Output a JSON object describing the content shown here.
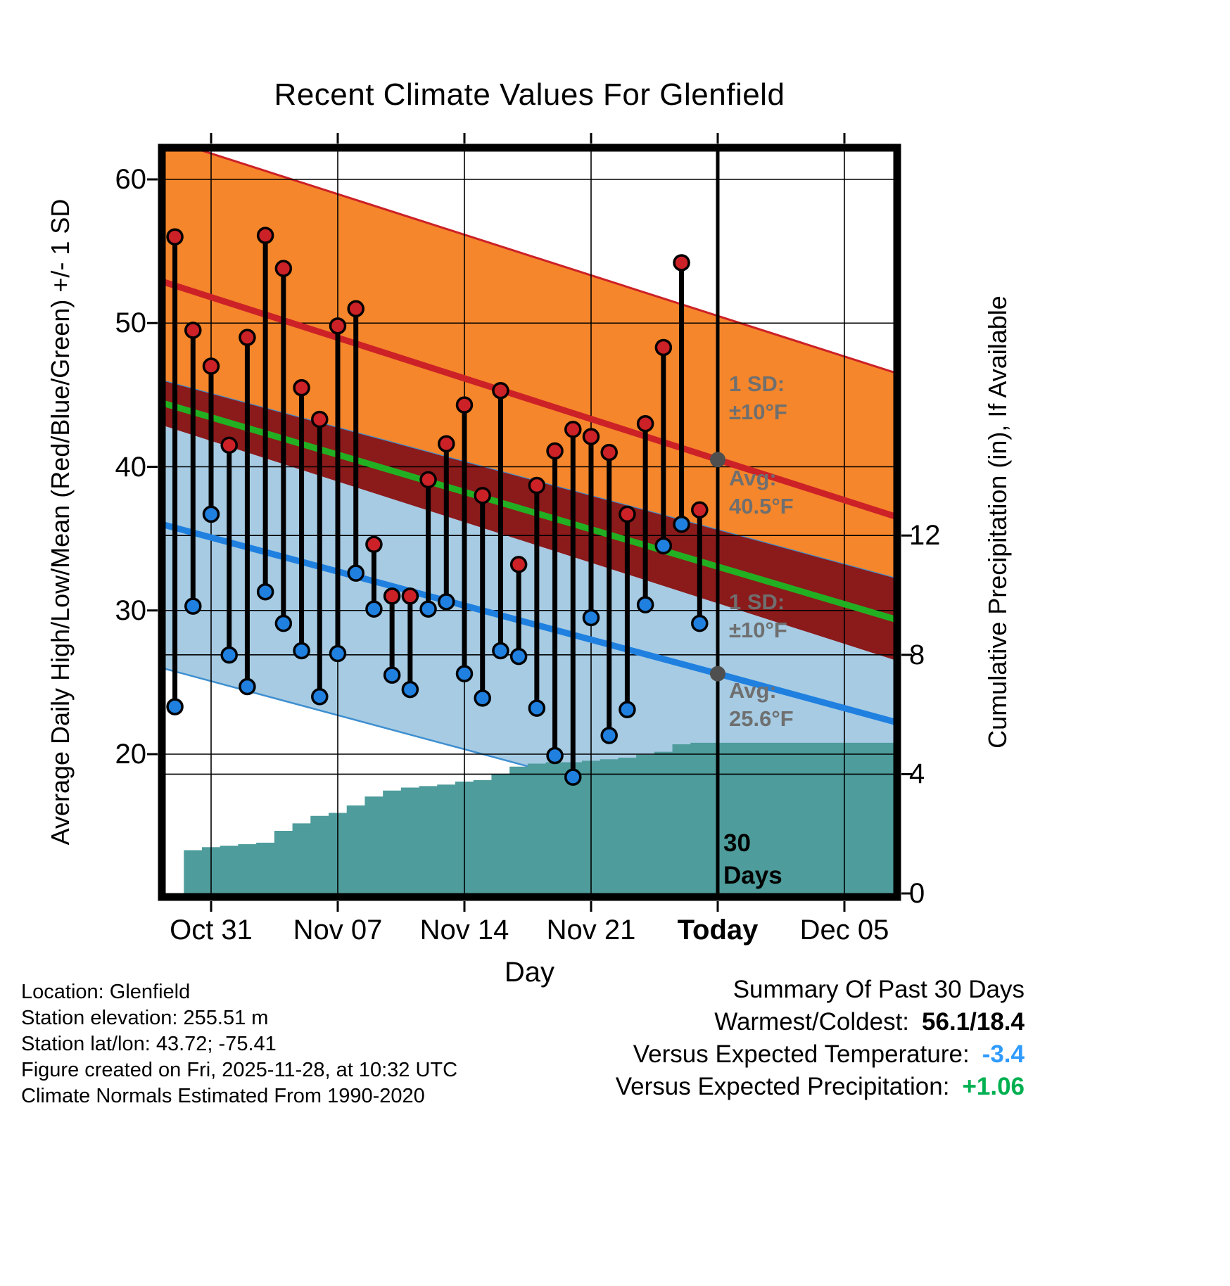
{
  "chart_data": {
    "type": "line",
    "title": "Recent Climate Values For Glenfield",
    "x_axis": {
      "label": "Day",
      "ticks": [
        {
          "label": "Oct 31",
          "day": 2,
          "bold": false
        },
        {
          "label": "Nov 07",
          "day": 9,
          "bold": false
        },
        {
          "label": "Nov 14",
          "day": 16,
          "bold": false
        },
        {
          "label": "Nov 21",
          "day": 23,
          "bold": false
        },
        {
          "label": "Today",
          "day": 30,
          "bold": true
        },
        {
          "label": "Dec 05",
          "day": 37,
          "bold": false
        }
      ]
    },
    "y_left": {
      "label": "Average Daily High/Low/Mean (Red/Blue/Green) +/- 1 SD",
      "ticks": [
        60,
        50,
        40,
        30,
        20
      ],
      "range": [
        10,
        62
      ]
    },
    "y_right": {
      "label": "Cumulative Precipitation (in), If Available",
      "ticks": [
        12,
        8,
        4,
        0
      ],
      "range": [
        0,
        25
      ]
    },
    "days": {
      "start_day_index": 0,
      "high": [
        56.0,
        49.5,
        47.0,
        41.5,
        49.0,
        56.1,
        53.8,
        45.5,
        43.3,
        49.8,
        51.0,
        34.6,
        31.0,
        31.0,
        39.1,
        41.6,
        44.3,
        38.0,
        45.3,
        33.2,
        38.7,
        41.1,
        42.6,
        42.1,
        41.0,
        36.7,
        43.0,
        48.3,
        54.2,
        37.0
      ],
      "low": [
        23.3,
        30.3,
        36.7,
        26.9,
        24.7,
        31.3,
        29.1,
        27.2,
        24.0,
        27.0,
        32.6,
        30.1,
        25.5,
        24.5,
        30.1,
        30.6,
        25.6,
        23.9,
        27.2,
        26.8,
        23.2,
        19.9,
        18.4,
        29.5,
        21.3,
        23.1,
        30.4,
        34.5,
        36.0,
        29.1
      ]
    },
    "normals": {
      "x_days": [
        -0.72,
        30,
        39.92
      ],
      "high_avg": [
        52.9,
        40.5,
        36.5
      ],
      "low_avg": [
        36.0,
        25.6,
        22.2
      ],
      "mean": [
        44.45,
        33.05,
        29.35
      ],
      "sd_f": 10
    },
    "precip": {
      "cumulative": [
        0.0,
        1.45,
        1.55,
        1.6,
        1.65,
        1.7,
        2.1,
        2.35,
        2.6,
        2.7,
        2.95,
        3.25,
        3.45,
        3.55,
        3.6,
        3.65,
        3.75,
        3.8,
        4.0,
        4.25,
        4.35,
        4.4,
        4.4,
        4.45,
        4.5,
        4.55,
        4.65,
        4.75,
        5.0,
        5.05,
        5.05
      ]
    },
    "annotations": {
      "high_sd": "1 SD:\n±10°F",
      "high_avg": "Avg:\n40.5°F",
      "low_sd": "1 SD:\n±10°F",
      "low_avg": "Avg:\n25.6°F",
      "today_marker": "30\nDays"
    },
    "colors": {
      "high_band": "#F5862B",
      "high_line": "#CC2127",
      "overlap_band": "#8B1A1B",
      "low_band": "#A6CBE3",
      "low_line": "#1F80E0",
      "mean_line": "#22B022",
      "precip_fill": "#4E9C9C",
      "bar": "#000000",
      "high_dot": "#CC2127",
      "low_dot": "#1F80E0",
      "marker_gray": "#4F4F4F",
      "annotation_gray": "#6F6F6F",
      "vs_temp_value": "#2F9BFF",
      "vs_precip_value": "#00B050"
    }
  },
  "footer": {
    "location": "Location: Glenfield",
    "elevation": "Station elevation: 255.51 m",
    "latlon": "Station lat/lon: 43.72; -75.41",
    "created": "Figure created on Fri, 2025-11-28, at 10:32 UTC",
    "normals_note": "Climate Normals Estimated From 1990-2020"
  },
  "summary": {
    "title": "Summary Of Past 30 Days",
    "warmest_coldest_label": "Warmest/Coldest:",
    "warmest_coldest_value": "56.1/18.4",
    "vs_temp_label": "Versus Expected Temperature:",
    "vs_temp_value": "-3.4",
    "vs_precip_label": "Versus Expected Precipitation:",
    "vs_precip_value": "+1.06"
  }
}
